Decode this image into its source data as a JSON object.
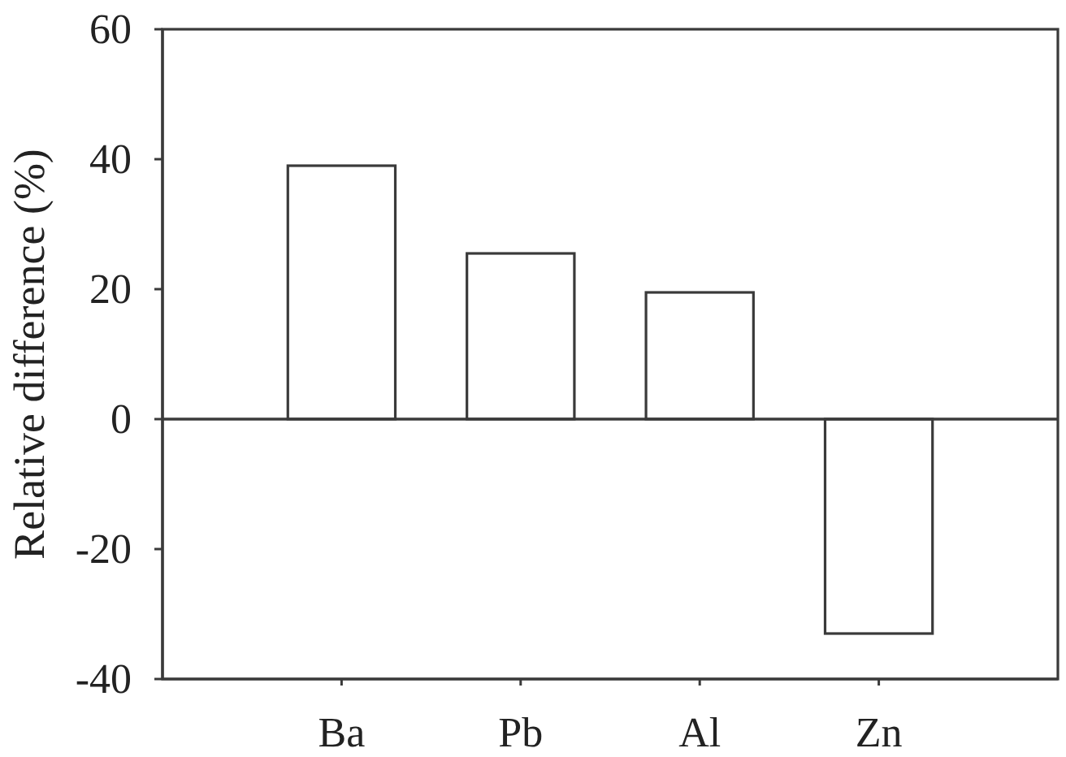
{
  "chart_data": {
    "type": "bar",
    "ylabel": "Relative difference (%)",
    "categories": [
      "Ba",
      "Pb",
      "Al",
      "Zn"
    ],
    "values": [
      39,
      25.5,
      19.5,
      -33
    ],
    "color": "#ffffff",
    "ylim": [
      -40,
      60
    ],
    "yticks": [
      -40,
      -20,
      0,
      20,
      40,
      60
    ]
  }
}
